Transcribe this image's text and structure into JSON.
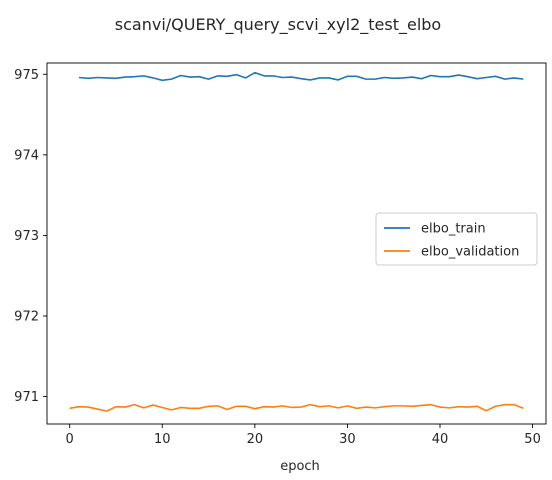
{
  "chart_data": {
    "type": "line",
    "title": "scanvi/QUERY_query_scvi_xyl2_test_elbo",
    "xlabel": "epoch",
    "ylabel": "",
    "xlim": [
      -2.45,
      51.45
    ],
    "ylim": [
      970.66,
      975.14
    ],
    "xticks": [
      0,
      10,
      20,
      30,
      40,
      50
    ],
    "yticks": [
      971,
      972,
      973,
      974,
      975
    ],
    "grid": false,
    "legend": "center-right",
    "series": [
      {
        "name": "elbo_train",
        "color": "#1f77b4",
        "x": [
          1,
          2,
          3,
          4,
          5,
          6,
          7,
          8,
          9,
          10,
          11,
          12,
          13,
          14,
          15,
          16,
          17,
          18,
          19,
          20,
          21,
          22,
          23,
          24,
          25,
          26,
          27,
          28,
          29,
          30,
          31,
          32,
          33,
          34,
          35,
          36,
          37,
          38,
          39,
          40,
          41,
          42,
          43,
          44,
          45,
          46,
          47,
          48,
          49
        ],
        "values": [
          974.96,
          974.95,
          974.96,
          974.955,
          974.95,
          974.965,
          974.97,
          974.98,
          974.955,
          974.925,
          974.94,
          974.985,
          974.965,
          974.97,
          974.94,
          974.98,
          974.975,
          974.995,
          974.955,
          975.02,
          974.98,
          974.98,
          974.96,
          974.965,
          974.945,
          974.93,
          974.955,
          974.955,
          974.93,
          974.975,
          974.975,
          974.94,
          974.94,
          974.96,
          974.95,
          974.955,
          974.965,
          974.945,
          974.985,
          974.97,
          974.97,
          974.99,
          974.97,
          974.945,
          974.96,
          974.975,
          974.94,
          974.955,
          974.94
        ]
      },
      {
        "name": "elbo_validation",
        "color": "#ff7f0e",
        "x": [
          0,
          1,
          2,
          3,
          4,
          5,
          6,
          7,
          8,
          9,
          10,
          11,
          12,
          13,
          14,
          15,
          16,
          17,
          18,
          19,
          20,
          21,
          22,
          23,
          24,
          25,
          26,
          27,
          28,
          29,
          30,
          31,
          32,
          33,
          34,
          35,
          36,
          37,
          38,
          39,
          40,
          41,
          42,
          43,
          44,
          45,
          46,
          47,
          48,
          49
        ],
        "values": [
          970.855,
          970.875,
          970.87,
          970.845,
          970.82,
          970.875,
          970.87,
          970.9,
          970.86,
          970.895,
          970.865,
          970.835,
          970.865,
          970.855,
          970.855,
          970.88,
          970.885,
          970.84,
          970.88,
          970.88,
          970.85,
          970.875,
          970.87,
          970.885,
          970.865,
          970.87,
          970.9,
          970.875,
          970.885,
          970.86,
          970.885,
          970.855,
          970.87,
          970.86,
          970.875,
          970.885,
          970.885,
          970.88,
          970.89,
          970.9,
          970.87,
          970.86,
          970.875,
          970.87,
          970.88,
          970.825,
          970.88,
          970.9,
          970.9,
          970.855
        ]
      }
    ]
  }
}
